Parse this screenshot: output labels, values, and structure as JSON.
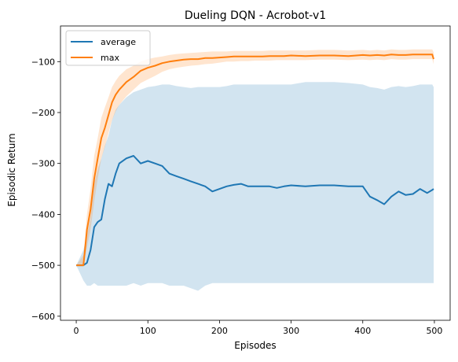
{
  "chart_data": {
    "type": "line",
    "title": "Dueling DQN - Acrobot-v1",
    "xlabel": "Episodes",
    "ylabel": "Episodic Return",
    "xlim": [
      -22,
      522
    ],
    "ylim": [
      -608,
      -30
    ],
    "xticks": [
      0,
      100,
      200,
      300,
      400,
      500
    ],
    "yticks": [
      -600,
      -500,
      -400,
      -300,
      -200,
      -100
    ],
    "xtick_labels": [
      "0",
      "100",
      "200",
      "300",
      "400",
      "500"
    ],
    "ytick_labels": [
      "−600",
      "−500",
      "−400",
      "−300",
      "−200",
      "−100"
    ],
    "legend_position": "top-left",
    "grid": false,
    "series": [
      {
        "name": "average",
        "color": "#1f77b4",
        "x": [
          0,
          10,
          15,
          20,
          25,
          30,
          35,
          40,
          45,
          50,
          55,
          60,
          70,
          80,
          90,
          100,
          110,
          120,
          130,
          140,
          150,
          160,
          170,
          180,
          190,
          200,
          210,
          220,
          230,
          240,
          250,
          260,
          270,
          280,
          290,
          300,
          320,
          340,
          360,
          380,
          400,
          410,
          420,
          430,
          440,
          450,
          460,
          470,
          480,
          490,
          497,
          499
        ],
        "y": [
          -500,
          -500,
          -495,
          -470,
          -425,
          -415,
          -410,
          -370,
          -340,
          -345,
          -320,
          -300,
          -290,
          -285,
          -300,
          -295,
          -300,
          -305,
          -320,
          -325,
          -330,
          -335,
          -340,
          -345,
          -355,
          -350,
          -345,
          -342,
          -340,
          -345,
          -345,
          -345,
          -345,
          -348,
          -345,
          -343,
          -345,
          -343,
          -343,
          -345,
          -345,
          -365,
          -372,
          -380,
          -365,
          -355,
          -362,
          -360,
          -350,
          -358,
          -352,
          -350
        ]
      },
      {
        "name": "max",
        "color": "#ff7f0e",
        "x": [
          0,
          10,
          15,
          20,
          25,
          30,
          35,
          40,
          45,
          50,
          55,
          60,
          70,
          80,
          90,
          100,
          110,
          120,
          130,
          140,
          150,
          160,
          170,
          180,
          190,
          200,
          210,
          220,
          230,
          240,
          250,
          260,
          270,
          280,
          290,
          300,
          320,
          340,
          360,
          380,
          400,
          410,
          420,
          430,
          440,
          450,
          460,
          470,
          480,
          490,
          497,
          499
        ],
        "y": [
          -500,
          -500,
          -430,
          -390,
          -330,
          -290,
          -250,
          -230,
          -205,
          -180,
          -165,
          -155,
          -140,
          -130,
          -118,
          -112,
          -108,
          -103,
          -100,
          -98,
          -96,
          -95,
          -95,
          -93,
          -93,
          -92,
          -91,
          -90,
          -90,
          -90,
          -90,
          -90,
          -89,
          -89,
          -89,
          -88,
          -89,
          -88,
          -88,
          -89,
          -87,
          -88,
          -87,
          -88,
          -86,
          -87,
          -87,
          -86,
          -86,
          -86,
          -86,
          -95
        ]
      },
      {
        "name": "",
        "role": "shaded-range",
        "color": "#1f77b4",
        "x": [
          0,
          10,
          15,
          20,
          25,
          30,
          35,
          40,
          45,
          50,
          55,
          60,
          70,
          80,
          90,
          100,
          110,
          120,
          130,
          140,
          150,
          160,
          170,
          180,
          190,
          200,
          210,
          220,
          230,
          240,
          250,
          260,
          270,
          280,
          290,
          300,
          320,
          340,
          360,
          380,
          400,
          410,
          420,
          430,
          440,
          450,
          460,
          470,
          480,
          490,
          497,
          499
        ],
        "low": [
          -500,
          -530,
          -540,
          -540,
          -535,
          -540,
          -540,
          -540,
          -540,
          -540,
          -540,
          -540,
          -540,
          -535,
          -540,
          -535,
          -535,
          -535,
          -540,
          -540,
          -540,
          -545,
          -550,
          -540,
          -535,
          -535,
          -535,
          -535,
          -535,
          -535,
          -535,
          -535,
          -535,
          -535,
          -535,
          -535,
          -535,
          -535,
          -535,
          -535,
          -535,
          -535,
          -535,
          -535,
          -535,
          -535,
          -535,
          -535,
          -535,
          -535,
          -535,
          -535
        ],
        "high": [
          -500,
          -470,
          -440,
          -405,
          -340,
          -310,
          -290,
          -265,
          -245,
          -215,
          -195,
          -185,
          -170,
          -160,
          -155,
          -150,
          -148,
          -145,
          -145,
          -148,
          -150,
          -152,
          -150,
          -150,
          -150,
          -150,
          -148,
          -145,
          -145,
          -145,
          -145,
          -145,
          -145,
          -145,
          -145,
          -145,
          -140,
          -140,
          -140,
          -142,
          -145,
          -150,
          -152,
          -155,
          -150,
          -148,
          -150,
          -148,
          -145,
          -145,
          -145,
          -150
        ]
      },
      {
        "name": "",
        "role": "shaded-range",
        "color": "#ff7f0e",
        "x": [
          0,
          10,
          15,
          20,
          25,
          30,
          35,
          40,
          45,
          50,
          55,
          60,
          70,
          80,
          90,
          100,
          110,
          120,
          130,
          140,
          150,
          160,
          170,
          180,
          190,
          200,
          210,
          220,
          230,
          240,
          250,
          260,
          270,
          280,
          290,
          300,
          320,
          340,
          360,
          380,
          400,
          410,
          420,
          430,
          440,
          450,
          460,
          470,
          480,
          490,
          497,
          499
        ],
        "low": [
          -500,
          -500,
          -465,
          -430,
          -375,
          -330,
          -290,
          -268,
          -240,
          -215,
          -198,
          -185,
          -168,
          -155,
          -142,
          -135,
          -128,
          -120,
          -115,
          -112,
          -110,
          -108,
          -107,
          -105,
          -104,
          -102,
          -100,
          -100,
          -99,
          -99,
          -98,
          -98,
          -98,
          -97,
          -97,
          -97,
          -97,
          -96,
          -96,
          -97,
          -96,
          -97,
          -96,
          -97,
          -95,
          -96,
          -96,
          -95,
          -95,
          -95,
          -95,
          -105
        ],
        "high": [
          -500,
          -480,
          -400,
          -350,
          -285,
          -250,
          -210,
          -190,
          -170,
          -150,
          -138,
          -128,
          -115,
          -108,
          -100,
          -95,
          -92,
          -90,
          -87,
          -85,
          -84,
          -83,
          -82,
          -81,
          -80,
          -80,
          -80,
          -79,
          -79,
          -79,
          -79,
          -79,
          -78,
          -78,
          -78,
          -78,
          -78,
          -77,
          -77,
          -78,
          -77,
          -78,
          -77,
          -78,
          -76,
          -77,
          -77,
          -76,
          -76,
          -76,
          -76,
          -82
        ]
      }
    ]
  }
}
